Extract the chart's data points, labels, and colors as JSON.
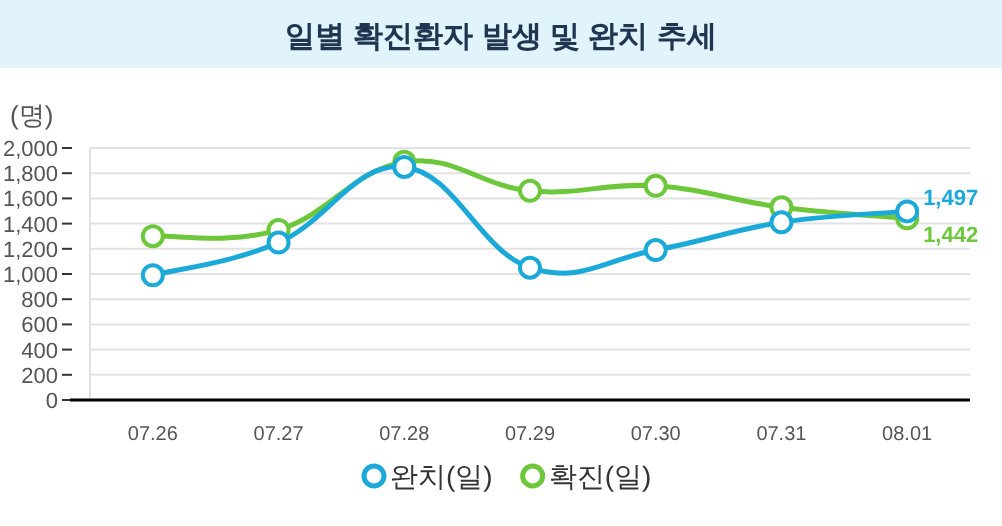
{
  "chart_data": {
    "type": "line",
    "title": "일별 확진환자 발생 및 완치 추세",
    "ylabel": "(명)",
    "categories": [
      "07.26",
      "07.27",
      "07.28",
      "07.29",
      "07.30",
      "07.31",
      "08.01"
    ],
    "series": [
      {
        "name": "완치(일)",
        "color": "#1aa9d8",
        "values": [
          990,
          1250,
          1850,
          1050,
          1190,
          1410,
          1497
        ],
        "value_labels": [
          null,
          null,
          null,
          null,
          null,
          null,
          "1,497"
        ]
      },
      {
        "name": "확진(일)",
        "color": "#6cc83a",
        "values": [
          1300,
          1350,
          1890,
          1660,
          1700,
          1530,
          1442
        ],
        "value_labels": [
          null,
          null,
          null,
          null,
          null,
          null,
          "1,442"
        ]
      }
    ],
    "ylim": [
      0,
      2000
    ],
    "yticks": [
      {
        "value": 0,
        "label": "0"
      },
      {
        "value": 200,
        "label": "200"
      },
      {
        "value": 400,
        "label": "400"
      },
      {
        "value": 600,
        "label": "600"
      },
      {
        "value": 800,
        "label": "800"
      },
      {
        "value": 1000,
        "label": "1,000"
      },
      {
        "value": 1200,
        "label": "1,200"
      },
      {
        "value": 1400,
        "label": "1,400"
      },
      {
        "value": 1600,
        "label": "1,600"
      },
      {
        "value": 1800,
        "label": "1,800"
      },
      {
        "value": 2000,
        "label": "2,000"
      }
    ],
    "grid": "y",
    "legend": "bottom",
    "marker": "circle",
    "line_style": "solid"
  }
}
